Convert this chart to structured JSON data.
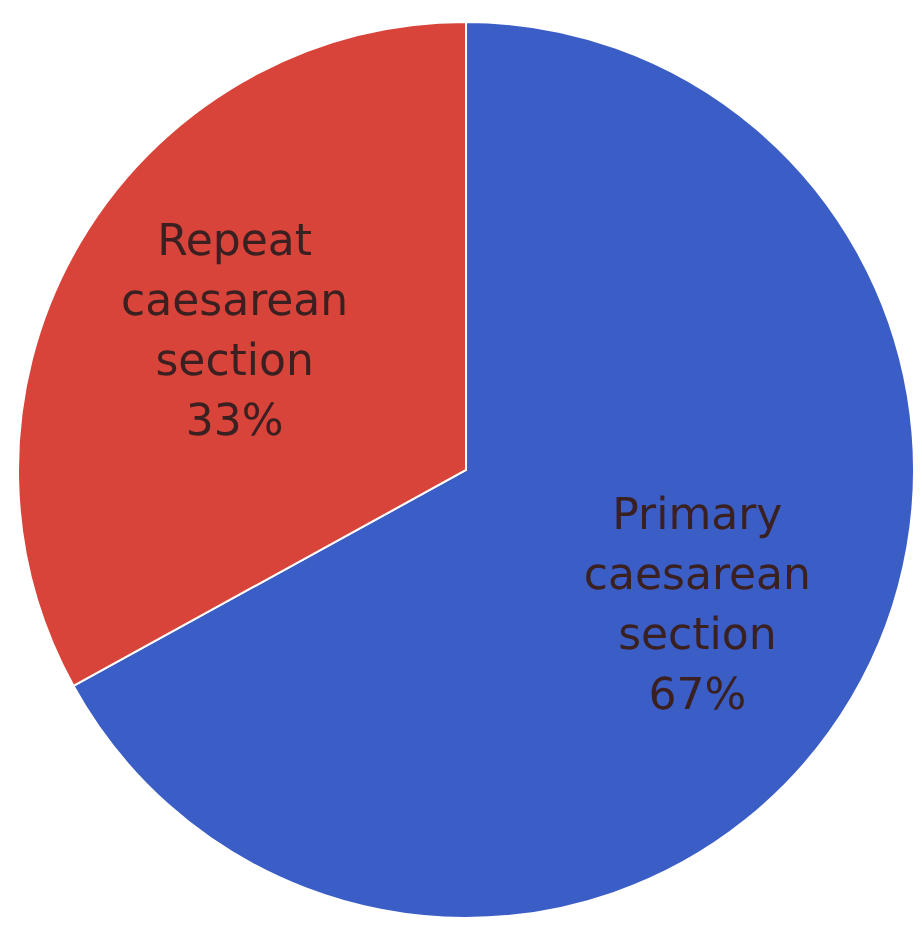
{
  "chart_data": {
    "type": "pie",
    "categories": [
      "Primary caesarean section",
      "Repeat caesarean section"
    ],
    "values": [
      67,
      33
    ],
    "colors": [
      "#3b5ec6",
      "#d8443a"
    ],
    "value_labels": [
      "67%",
      "33%"
    ]
  }
}
